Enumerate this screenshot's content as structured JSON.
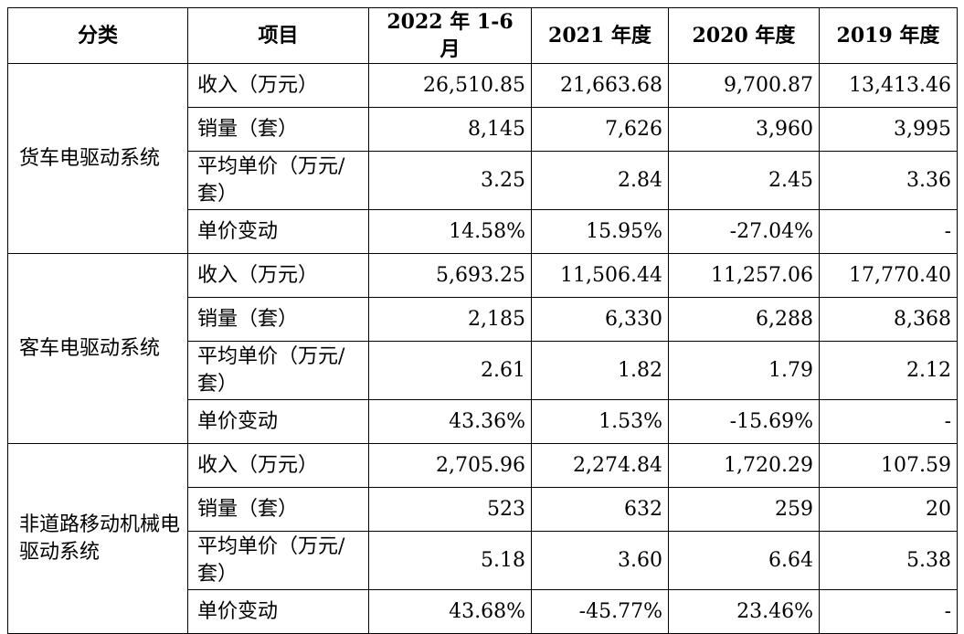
{
  "headers": [
    "分类",
    "项目",
    "2022 年 1-6 月",
    "2021 年度",
    "2020 年度",
    "2019 年度"
  ],
  "groups": [
    {
      "category": "货车电驱动系统",
      "rows": [
        {
          "item": "收入（万元）",
          "values": [
            "26,510.85",
            "21,663.68",
            "9,700.87",
            "13,413.46"
          ]
        },
        {
          "item": "销量（套）",
          "values": [
            "8,145",
            "7,626",
            "3,960",
            "3,995"
          ]
        },
        {
          "item": "平均单价（万元/套）",
          "values": [
            "3.25",
            "2.84",
            "2.45",
            "3.36"
          ]
        },
        {
          "item": "单价变动",
          "values": [
            "14.58%",
            "15.95%",
            "-27.04%",
            "-"
          ]
        }
      ]
    },
    {
      "category": "客车电驱动系统",
      "rows": [
        {
          "item": "收入（万元）",
          "values": [
            "5,693.25",
            "11,506.44",
            "11,257.06",
            "17,770.40"
          ]
        },
        {
          "item": "销量（套）",
          "values": [
            "2,185",
            "6,330",
            "6,288",
            "8,368"
          ]
        },
        {
          "item": "平均单价（万元/套）",
          "values": [
            "2.61",
            "1.82",
            "1.79",
            "2.12"
          ]
        },
        {
          "item": "单价变动",
          "values": [
            "43.36%",
            "1.53%",
            "-15.69%",
            "-"
          ]
        }
      ]
    },
    {
      "category": "非道路移动机械电驱动系统",
      "rows": [
        {
          "item": "收入（万元）",
          "values": [
            "2,705.96",
            "2,274.84",
            "1,720.29",
            "107.59"
          ]
        },
        {
          "item": "销量（套）",
          "values": [
            "523",
            "632",
            "259",
            "20"
          ]
        },
        {
          "item": "平均单价（万元/套）",
          "values": [
            "5.18",
            "3.60",
            "6.64",
            "5.38"
          ]
        },
        {
          "item": "单价变动",
          "values": [
            "43.68%",
            "-45.77%",
            "23.46%",
            "-"
          ]
        }
      ]
    }
  ]
}
